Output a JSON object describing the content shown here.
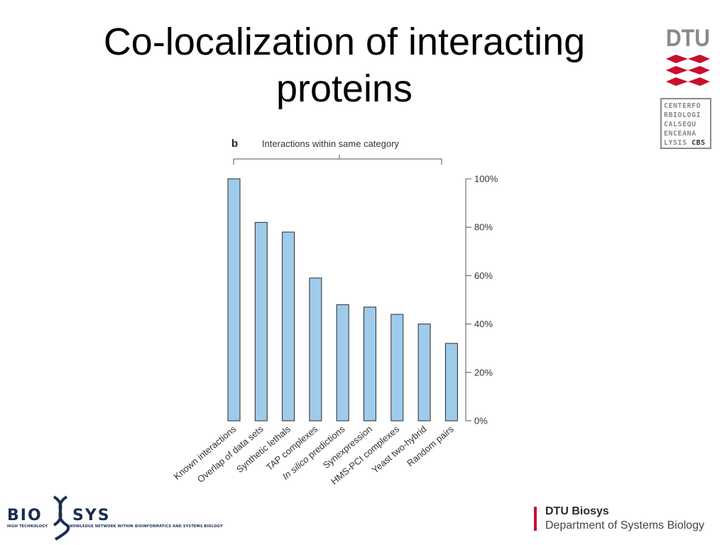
{
  "slide": {
    "title_line1": "Co-localization of interacting",
    "title_line2": "proteins"
  },
  "logos": {
    "dtu_text": "DTU",
    "cbs_lines": [
      "CENTERFO",
      "RBIOLOGI",
      "CALSEQU",
      "ENCEANA",
      "LYSIS "
    ],
    "cbs_bold": "CBS",
    "biosys_left": "BIO",
    "biosys_right": "SYS",
    "biosys_sub_left": "HIGH TECHNOLOGY",
    "biosys_sub_right": "KNOWLEDGE NETWORK WITHIN BIOINFORMATICS AND SYSTEMS BIOLOGY",
    "footer_name": "DTU Biosys",
    "footer_dept": "Department of Systems Biology"
  },
  "colors": {
    "bar_fill": "#9fcbeb",
    "bar_stroke": "#2a2a2a",
    "dtu_red": "#c8102e",
    "dtu_grey": "#8a8a8a",
    "biosys_navy": "#1a2d4f"
  },
  "chart_data": {
    "type": "bar",
    "panel_label": "b",
    "title": "Interactions within same category",
    "categories": [
      "Known interactions",
      "Overlap of data sets",
      "Synthetic lethals",
      "TAP complexes",
      "In silico predictions",
      "Synexpression",
      "HMS-PCI complexes",
      "Yeast two-hybrid",
      "Random pairs"
    ],
    "values": [
      100,
      82,
      78,
      59,
      48,
      47,
      44,
      40,
      32
    ],
    "ylim": [
      0,
      100
    ],
    "yticks": [
      0,
      20,
      40,
      60,
      80,
      100
    ],
    "ytick_labels": [
      "0%",
      "20%",
      "40%",
      "60%",
      "80%",
      "100%"
    ],
    "y_axis_side": "right",
    "grid": false,
    "legend": false
  }
}
